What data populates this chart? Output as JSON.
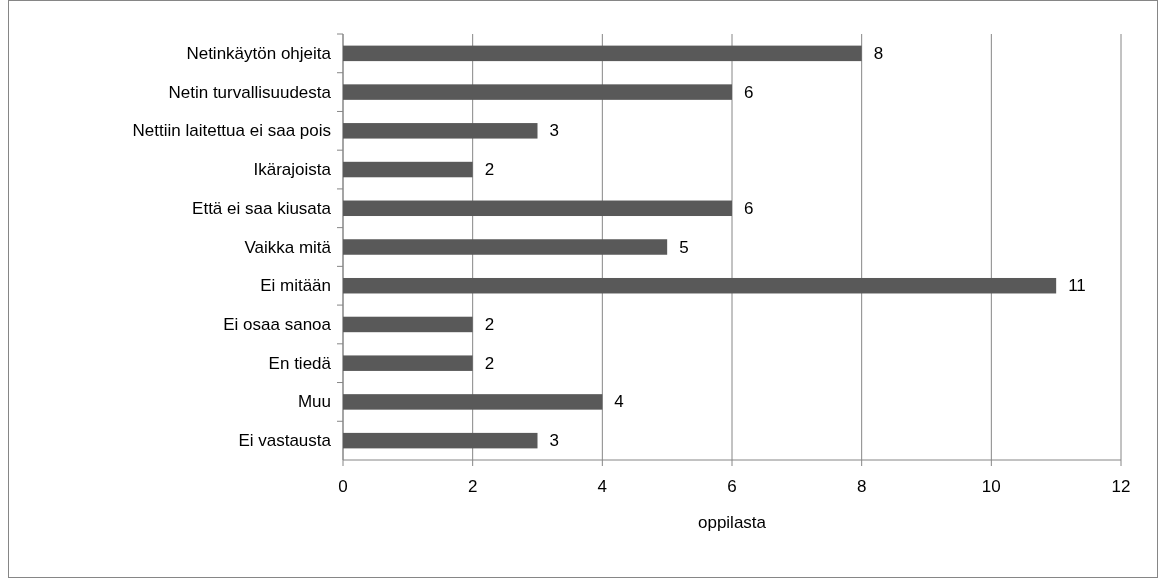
{
  "chart_data": {
    "type": "bar",
    "orientation": "horizontal",
    "xlabel": "oppilasta",
    "categories": [
      "Netinkäytön ohjeita",
      "Netin turvallisuudesta",
      "Nettiin laitettua ei saa pois",
      "Ikärajoista",
      "Että ei saa kiusata",
      "Vaikka mitä",
      "Ei mitään",
      "Ei osaa sanoa",
      "En tiedä",
      "Muu",
      "Ei vastausta"
    ],
    "values": [
      8,
      6,
      3,
      2,
      6,
      5,
      11,
      2,
      2,
      4,
      3
    ],
    "color": "#595959",
    "xlim": [
      0,
      12
    ],
    "xticks": [
      0,
      2,
      4,
      6,
      8,
      10,
      12
    ],
    "grid": "x",
    "data_labels": true
  }
}
